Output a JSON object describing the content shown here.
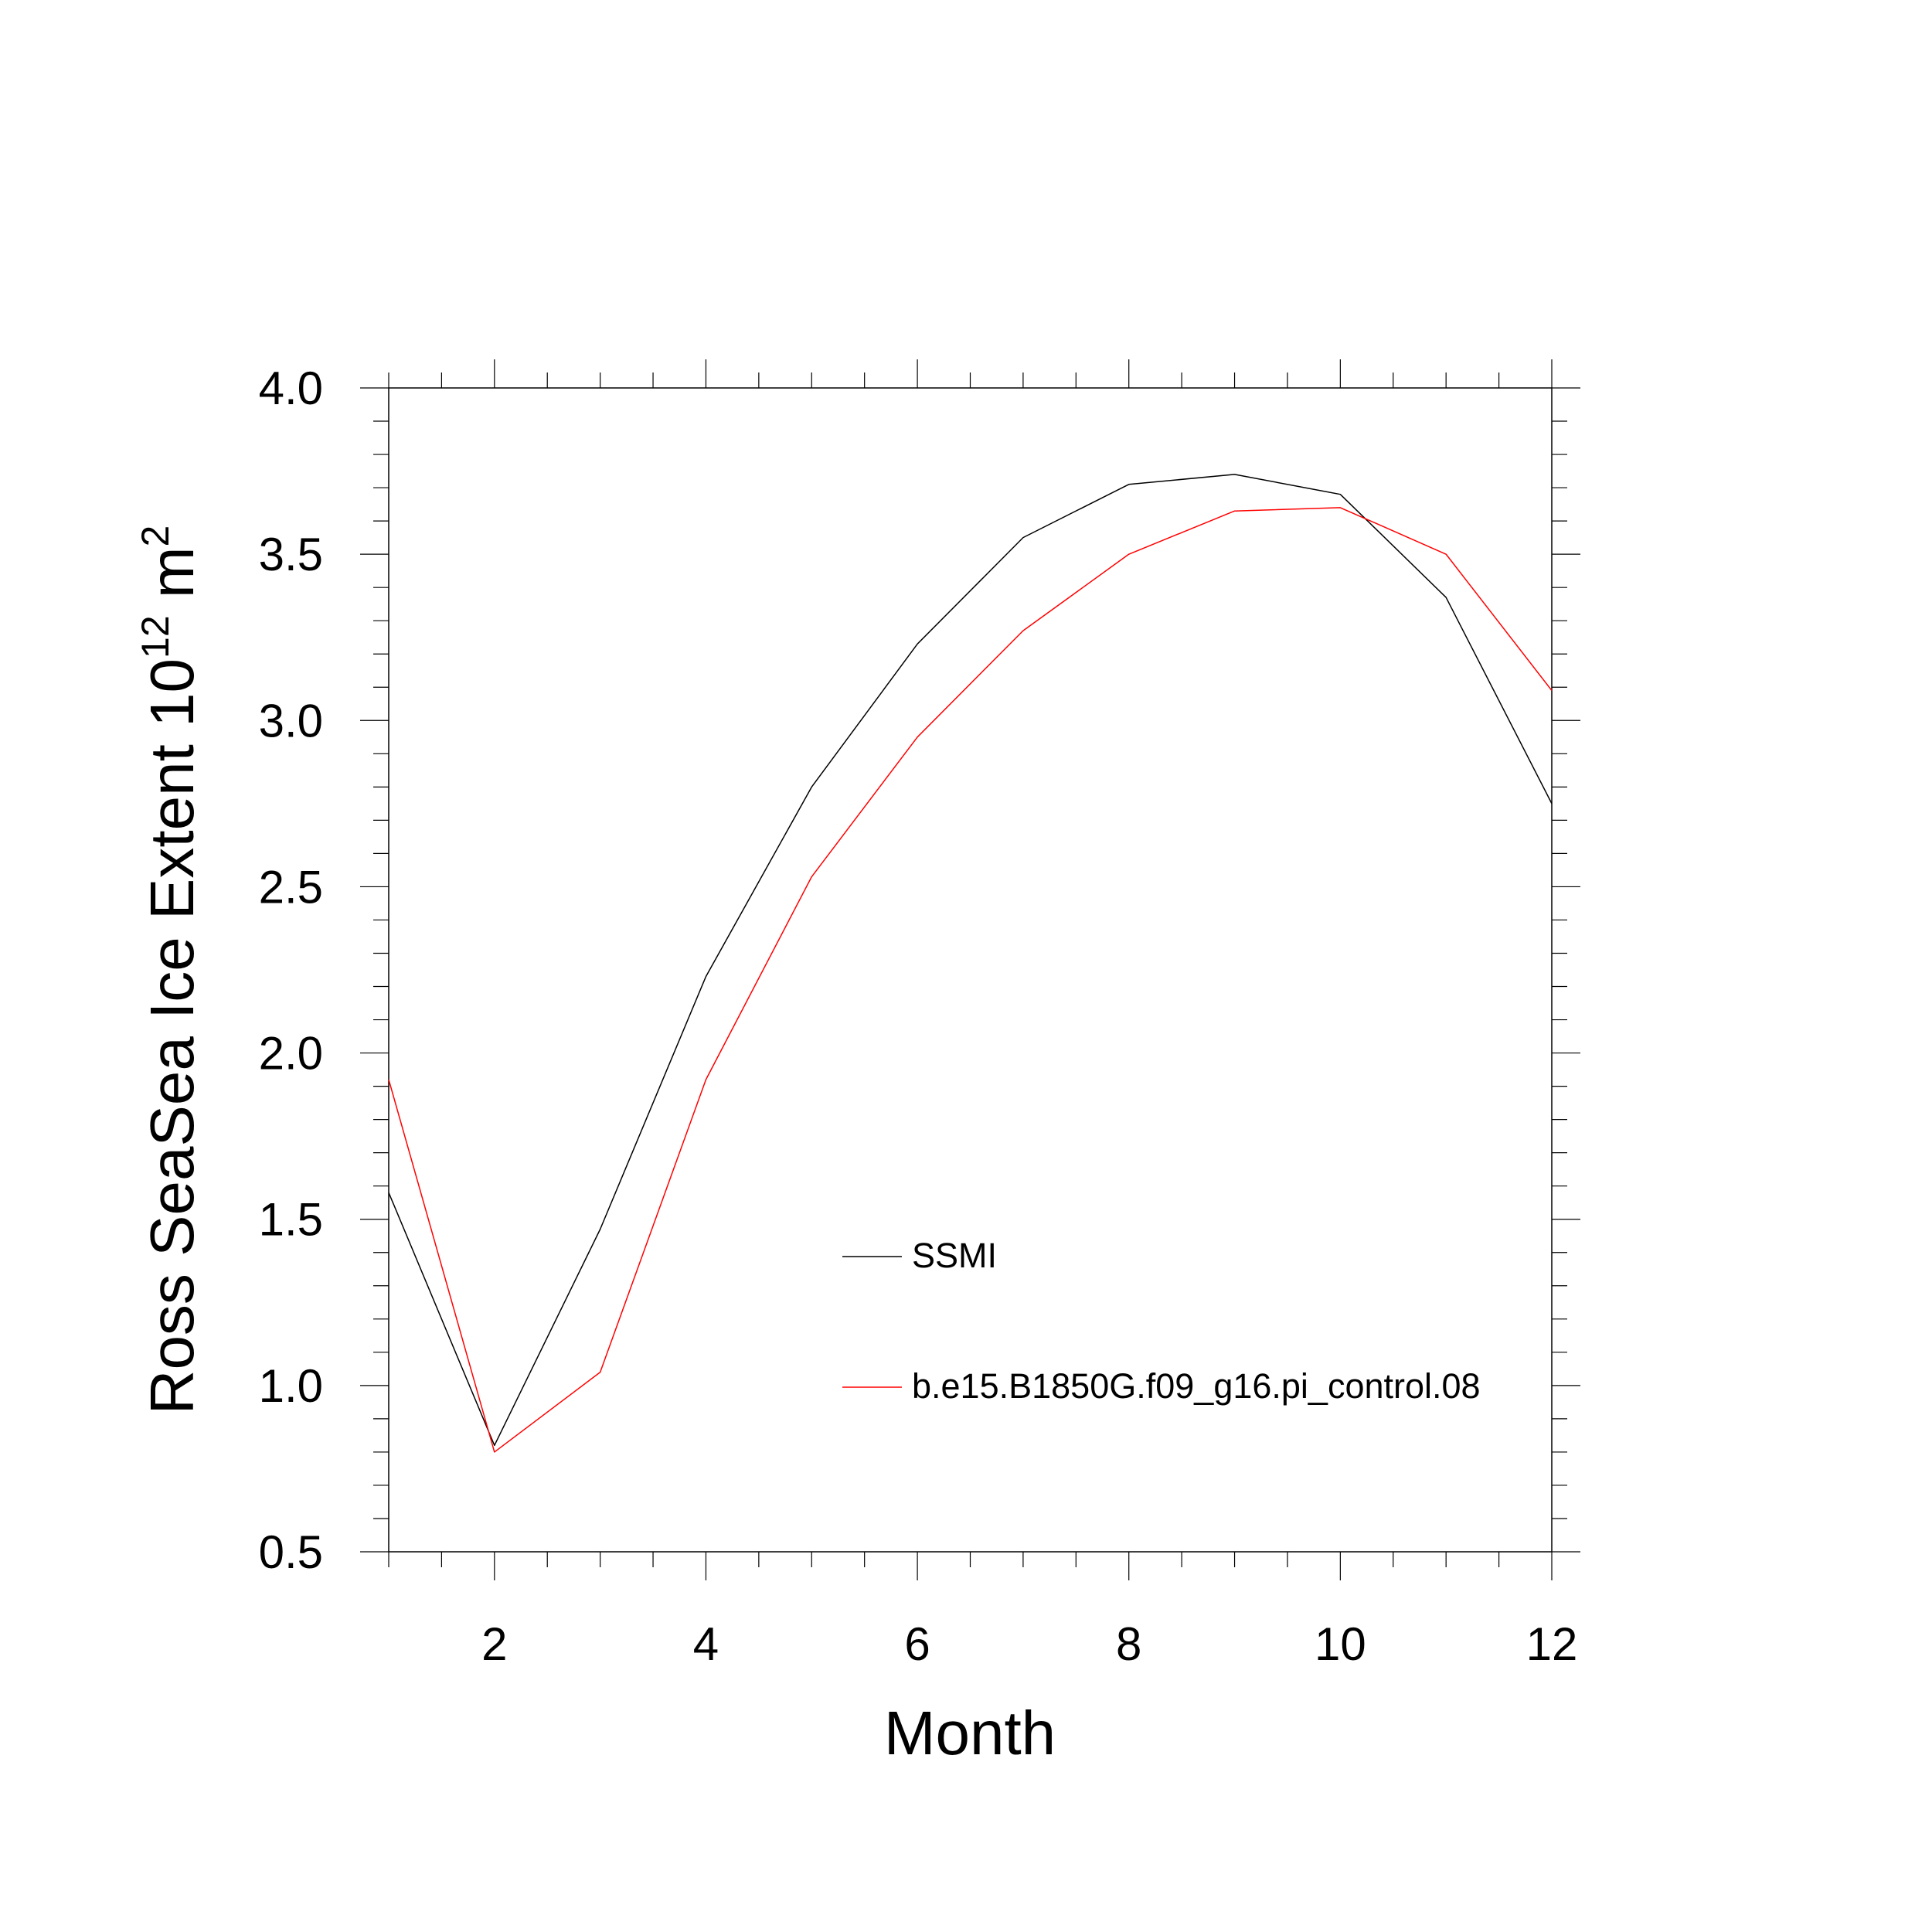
{
  "chart_data": {
    "type": "line",
    "title": "",
    "xlabel": "Month",
    "ylabel_main": "Ross SeaSea Ice Extent 10",
    "ylabel_sup1": "12",
    "ylabel_unit": " m",
    "ylabel_sup2": "2",
    "xlim": [
      1,
      12
    ],
    "ylim": [
      0.5,
      4.0
    ],
    "x_major_ticks": [
      2,
      4,
      6,
      8,
      10,
      12
    ],
    "x_minor_step": 0.5,
    "y_major_ticks": [
      0.5,
      1.0,
      1.5,
      2.0,
      2.5,
      3.0,
      3.5,
      4.0
    ],
    "y_tick_labels": [
      "0.5",
      "1.0",
      "1.5",
      "2.0",
      "2.5",
      "3.0",
      "3.5",
      "4.0"
    ],
    "y_minor_step": 0.1,
    "grid": false,
    "legend_position": "inside, lower-center",
    "x": [
      1,
      2,
      3,
      4,
      5,
      6,
      7,
      8,
      9,
      10,
      11,
      12
    ],
    "series": [
      {
        "name": "SSMI",
        "color": "#000000",
        "values": [
          1.58,
          0.82,
          1.47,
          2.23,
          2.8,
          3.23,
          3.55,
          3.71,
          3.74,
          3.68,
          3.37,
          2.75
        ]
      },
      {
        "name": "b.e15.B1850G.f09_g16.pi_control.08",
        "color": "#ff0000",
        "values": [
          1.92,
          0.8,
          1.04,
          1.92,
          2.53,
          2.95,
          3.27,
          3.5,
          3.63,
          3.64,
          3.5,
          3.09
        ]
      }
    ]
  }
}
